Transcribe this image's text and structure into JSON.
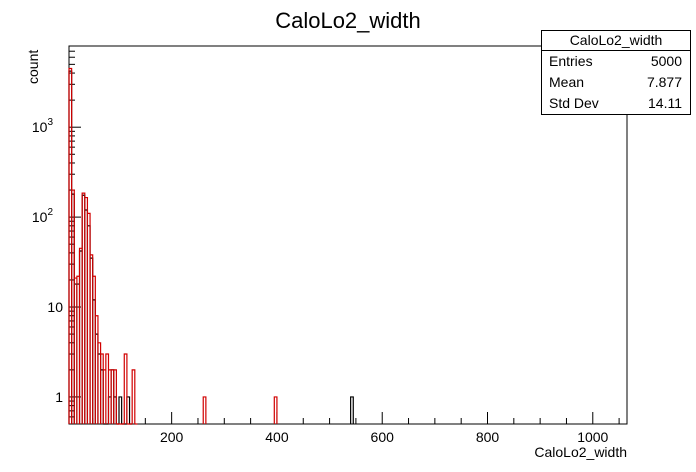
{
  "chart_data": {
    "type": "histogram",
    "title": "CaloLo2_width",
    "xlabel": "CaloLo2_width",
    "ylabel": "count",
    "xlim": [
      5,
      1065
    ],
    "ylim": [
      0.5,
      8000
    ],
    "log_y": true,
    "grid": false,
    "x_ticks": [
      "200",
      "400",
      "600",
      "800",
      "1000"
    ],
    "y_ticks": [
      {
        "value": 1,
        "label": "1"
      },
      {
        "value": 10,
        "label": "10"
      },
      {
        "value": 100,
        "label": "10",
        "sup": "2"
      },
      {
        "value": 1000,
        "label": "10",
        "sup": "3"
      }
    ],
    "series": [
      {
        "color": "#000000",
        "bin_width": 5,
        "bins": [
          [
            5,
            4200
          ],
          [
            10,
            180
          ],
          [
            15,
            18
          ],
          [
            20,
            18
          ],
          [
            25,
            42
          ],
          [
            30,
            175
          ],
          [
            35,
            120
          ],
          [
            40,
            80
          ],
          [
            45,
            35
          ],
          [
            50,
            12
          ],
          [
            55,
            5
          ],
          [
            60,
            3
          ],
          [
            65,
            2
          ],
          [
            70,
            0.5
          ],
          [
            75,
            0.5
          ],
          [
            80,
            1
          ],
          [
            85,
            2
          ],
          [
            90,
            1
          ],
          [
            95,
            0.5
          ],
          [
            100,
            1
          ],
          [
            105,
            0.5
          ],
          [
            110,
            0.5
          ],
          [
            115,
            1
          ],
          [
            120,
            0.5
          ],
          [
            540,
            1
          ]
        ]
      },
      {
        "color": "#d10000",
        "bin_width": 5,
        "bins": [
          [
            5,
            4500
          ],
          [
            10,
            200
          ],
          [
            15,
            21
          ],
          [
            20,
            22
          ],
          [
            25,
            45
          ],
          [
            30,
            185
          ],
          [
            35,
            165
          ],
          [
            40,
            110
          ],
          [
            45,
            38
          ],
          [
            50,
            22
          ],
          [
            55,
            8
          ],
          [
            60,
            4
          ],
          [
            65,
            3
          ],
          [
            70,
            2
          ],
          [
            75,
            3
          ],
          [
            80,
            2
          ],
          [
            85,
            2
          ],
          [
            90,
            2
          ],
          [
            95,
            0.5
          ],
          [
            100,
            0.5
          ],
          [
            105,
            0.5
          ],
          [
            110,
            3
          ],
          [
            115,
            0.5
          ],
          [
            120,
            0.5
          ],
          [
            125,
            2
          ],
          [
            130,
            0.5
          ],
          [
            260,
            1
          ],
          [
            395,
            1
          ]
        ]
      }
    ]
  },
  "stats": {
    "title": "CaloLo2_width",
    "rows": [
      {
        "label": "Entries",
        "value": "5000"
      },
      {
        "label": "Mean",
        "value": "7.877"
      },
      {
        "label": "Std Dev",
        "value": "14.11"
      }
    ]
  }
}
